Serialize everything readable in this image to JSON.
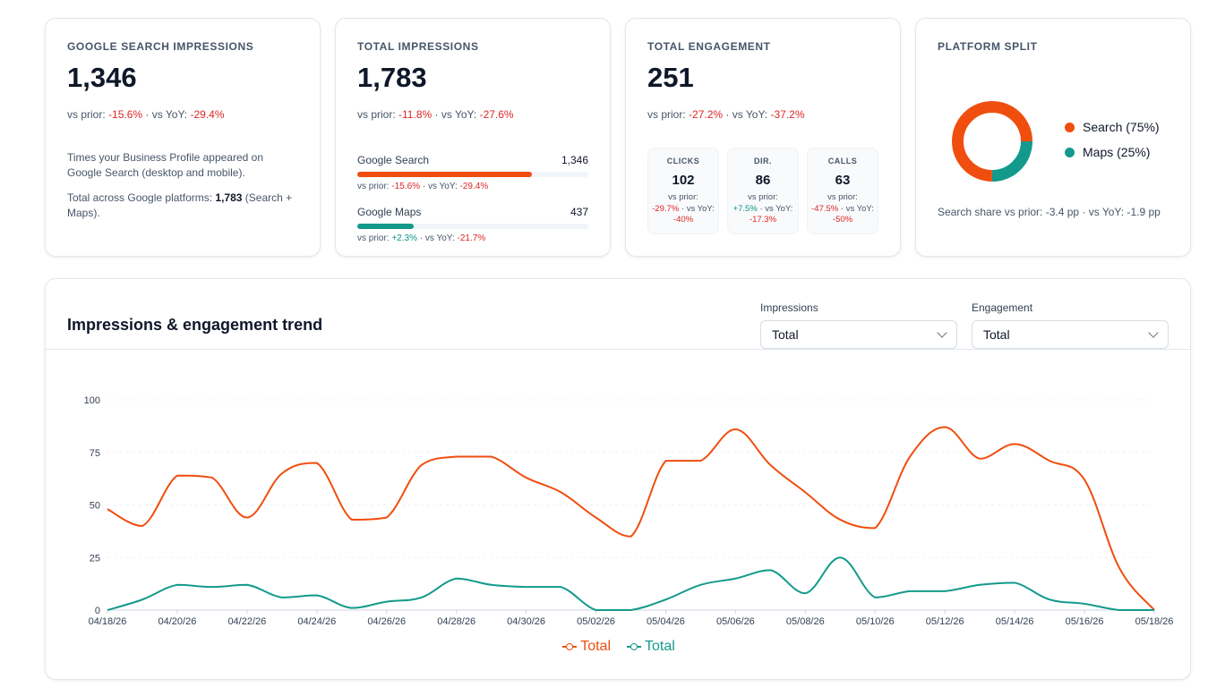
{
  "colors": {
    "search": "#f04e0f",
    "maps": "#139a8c",
    "negative": "#dc2626",
    "positive": "#0d9488"
  },
  "cards": {
    "google_search": {
      "title": "GOOGLE SEARCH IMPRESSIONS",
      "value": "1,346",
      "prior_label": "vs prior:",
      "prior": "-15.6%",
      "sep": "·",
      "yoy_label": "vs YoY:",
      "yoy": "-29.4%",
      "desc": "Times your Business Profile appeared on Google Search (desktop and mobile).",
      "total_prefix": "Total across Google platforms:",
      "total_value": "1,783",
      "total_suffix": "(Search + Maps)."
    },
    "total_impressions": {
      "title": "TOTAL IMPRESSIONS",
      "value": "1,783",
      "prior_label": "vs prior:",
      "prior": "-11.8%",
      "yoy_label": "vs YoY:",
      "yoy": "-27.6%",
      "platforms": [
        {
          "name": "Google Search",
          "value": "1,346",
          "share": 0.755,
          "prior_label": "vs prior:",
          "prior": "-15.6%",
          "yoy_label": "vs YoY:",
          "yoy": "-29.4%"
        },
        {
          "name": "Google Maps",
          "value": "437",
          "share": 0.245,
          "prior_label": "vs prior:",
          "prior": "+2.3%",
          "yoy_label": "vs YoY:",
          "yoy": "-21.7%"
        }
      ]
    },
    "total_engagement": {
      "title": "TOTAL ENGAGEMENT",
      "value": "251",
      "prior_label": "vs prior:",
      "prior": "-27.2%",
      "yoy_label": "vs YoY:",
      "yoy": "-37.2%",
      "metrics": [
        {
          "label": "CLICKS",
          "value": "102",
          "prior_label": "vs prior:",
          "prior": "-29.7%",
          "yoy_label": "vs YoY:",
          "yoy": "-40%"
        },
        {
          "label": "DIR.",
          "value": "86",
          "prior_label": "vs prior:",
          "prior": "+7.5%",
          "yoy_label": "vs YoY:",
          "yoy": "-17.3%"
        },
        {
          "label": "CALLS",
          "value": "63",
          "prior_label": "vs prior:",
          "prior": "-47.5%",
          "yoy_label": "vs YoY:",
          "yoy": "-50%"
        }
      ]
    },
    "platform_split": {
      "title": "PLATFORM SPLIT",
      "legend": [
        {
          "label": "Search (75%)",
          "share": 0.75
        },
        {
          "label": "Maps (25%)",
          "share": 0.25
        }
      ],
      "share_note": "Search share vs prior: -3.4 pp · vs YoY: -1.9 pp"
    }
  },
  "trend": {
    "title": "Impressions & engagement trend",
    "impressions_label": "Impressions",
    "impressions_value": "Total",
    "engagement_label": "Engagement",
    "engagement_value": "Total"
  },
  "chart_data": {
    "type": "line",
    "x": [
      "04/18/26",
      "04/19/26",
      "04/20/26",
      "04/21/26",
      "04/22/26",
      "04/23/26",
      "04/24/26",
      "04/25/26",
      "04/26/26",
      "04/27/26",
      "04/28/26",
      "04/29/26",
      "04/30/26",
      "05/01/26",
      "05/02/26",
      "05/03/26",
      "05/04/26",
      "05/05/26",
      "05/06/26",
      "05/07/26",
      "05/08/26",
      "05/09/26",
      "05/10/26",
      "05/11/26",
      "05/12/26",
      "05/13/26",
      "05/14/26",
      "05/15/26",
      "05/16/26",
      "05/17/26",
      "05/18/26"
    ],
    "x_ticks": [
      "04/18/26",
      "04/20/26",
      "04/22/26",
      "04/24/26",
      "04/26/26",
      "04/28/26",
      "04/30/26",
      "05/02/26",
      "05/04/26",
      "05/06/26",
      "05/08/26",
      "05/10/26",
      "05/12/26",
      "05/14/26",
      "05/16/26",
      "05/18/26"
    ],
    "series": [
      {
        "name": "Total",
        "color": "#f04e0f",
        "values": [
          48,
          40,
          64,
          63,
          44,
          65,
          70,
          43,
          44,
          69,
          73,
          73,
          63,
          56,
          44,
          35,
          71,
          71,
          86,
          69,
          56,
          43,
          39,
          73,
          87,
          72,
          79,
          71,
          62,
          20,
          0
        ]
      },
      {
        "name": "Total",
        "color": "#139a8c",
        "values": [
          0,
          5,
          12,
          11,
          12,
          6,
          7,
          1,
          4,
          6,
          15,
          12,
          11,
          11,
          0,
          0,
          5,
          12,
          15,
          19,
          8,
          25,
          6,
          9,
          9,
          12,
          13,
          5,
          3,
          0,
          0
        ]
      }
    ],
    "ylim": [
      0,
      100
    ],
    "y_ticks": [
      0,
      25,
      50,
      75,
      100
    ],
    "grid": true,
    "legend_position": "bottom"
  }
}
